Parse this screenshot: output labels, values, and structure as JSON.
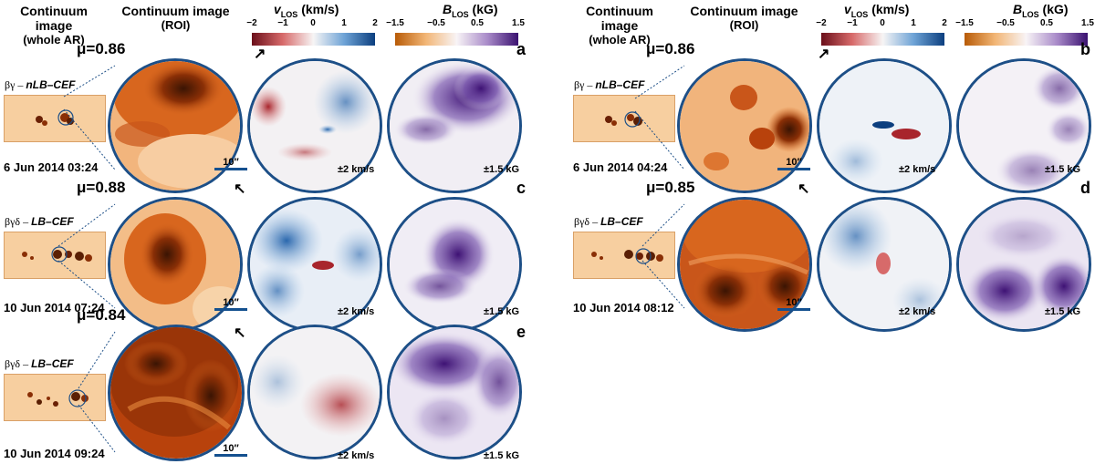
{
  "colors": {
    "frame": "#1d4f87",
    "dark": "#5a1f04",
    "umbra": "#8a2f06",
    "penumbra": "#d8661e",
    "photo": "#f5c490",
    "photo_light": "#f8d8ae",
    "vel_red": "#cf5b5b",
    "vel_blue": "#4f8cc9",
    "vel_white": "#f6f3f3",
    "mag_purple": "#5b2d8f",
    "mag_light": "#e8e1f1",
    "mag_orange": "#e89b3c"
  },
  "headers": {
    "whole_ar_line1": "Continuum image",
    "whole_ar_line2": "(whole AR)",
    "roi_line1": "Continuum image",
    "roi_line2": "(ROI)"
  },
  "colorbars": {
    "vlos_title": "v",
    "vlos_sub": "LOS",
    "vlos_unit": " (km/s)",
    "vlos_ticks": [
      "−2",
      "−1",
      "0",
      "1",
      "2"
    ],
    "blos_title": "B",
    "blos_sub": "LOS",
    "blos_unit": " (kG)",
    "blos_ticks": [
      "−1.5",
      "−0.5",
      "0.5",
      "1.5"
    ]
  },
  "panels": [
    {
      "label": "a",
      "mu": "μ=0.86",
      "class_greek": "βγ – ",
      "class_type": "nLB–CEF",
      "date": "6 Jun 2014 03:24",
      "scale": "10′′",
      "vel_range": "±2 km/s",
      "mag_range": "±1.5 kG",
      "arrow": "↗"
    },
    {
      "label": "b",
      "mu": "μ=0.86",
      "class_greek": "βγ – ",
      "class_type": "nLB–CEF",
      "date": "6 Jun 2014 04:24",
      "scale": "10′′",
      "vel_range": "±2 km/s",
      "mag_range": "±1.5 kG",
      "arrow": "↗"
    },
    {
      "label": "c",
      "mu": "μ=0.88",
      "class_greek": "βγδ – ",
      "class_type": "LB–CEF",
      "date": "10 Jun 2014 07:24",
      "scale": "10′′",
      "vel_range": "±2 km/s",
      "mag_range": "±1.5 kG",
      "arrow": "↖"
    },
    {
      "label": "d",
      "mu": "μ=0.85",
      "class_greek": "βγδ – ",
      "class_type": "LB–CEF",
      "date": "10 Jun 2014 08:12",
      "scale": "10′′",
      "vel_range": "±2 km/s",
      "mag_range": "±1.5 kG",
      "arrow": "↖"
    },
    {
      "label": "e",
      "mu": "μ=0.84",
      "class_greek": "βγδ – ",
      "class_type": "LB–CEF",
      "date": "10 Jun 2014 09:24",
      "scale": "10′′",
      "vel_range": "±2 km/s",
      "mag_range": "±1.5 kG",
      "arrow": "↖"
    }
  ]
}
